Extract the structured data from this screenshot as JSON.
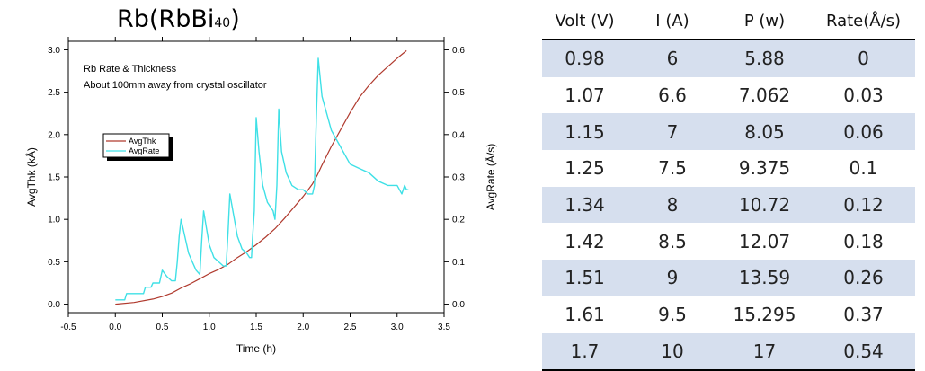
{
  "chart": {
    "title_main": "Rb(RbBi",
    "title_sub": "40",
    "title_close": ")"
  },
  "chart_data": {
    "type": "line",
    "annotation_lines": [
      "Rb Rate & Thickness",
      "About 100mm away from crystal oscillator"
    ],
    "xlabel": "Time (h)",
    "ylabel_left": "AvgThk (kÅ)",
    "ylabel_right": "AvgRate (Å/s)",
    "xlim": [
      -0.5,
      3.5
    ],
    "ylim_left": [
      -0.1,
      3.1
    ],
    "ylim_right": [
      -0.02,
      0.62
    ],
    "x_ticks": [
      "-0.5",
      "0.0",
      "0.5",
      "1.0",
      "1.5",
      "2.0",
      "2.5",
      "3.0",
      "3.5"
    ],
    "y_left_ticks": [
      "0.0",
      "0.5",
      "1.0",
      "1.5",
      "2.0",
      "2.5",
      "3.0"
    ],
    "y_right_ticks": [
      "0.0",
      "0.1",
      "0.2",
      "0.3",
      "0.4",
      "0.5",
      "0.6"
    ],
    "legend": {
      "placement": "center-left"
    },
    "colors": {
      "thk": "#b03a2e",
      "rate": "#3fe0e6"
    },
    "series": [
      {
        "name": "AvgThk",
        "axis": "left",
        "x": [
          0.0,
          0.2,
          0.4,
          0.5,
          0.6,
          0.7,
          0.8,
          0.9,
          1.0,
          1.1,
          1.2,
          1.3,
          1.4,
          1.5,
          1.6,
          1.7,
          1.8,
          1.9,
          2.0,
          2.1,
          2.15,
          2.2,
          2.3,
          2.4,
          2.5,
          2.6,
          2.7,
          2.8,
          2.9,
          3.0,
          3.1
        ],
        "y": [
          0.0,
          0.02,
          0.06,
          0.09,
          0.13,
          0.19,
          0.24,
          0.3,
          0.36,
          0.41,
          0.47,
          0.55,
          0.62,
          0.7,
          0.79,
          0.89,
          1.01,
          1.14,
          1.27,
          1.42,
          1.52,
          1.64,
          1.86,
          2.06,
          2.26,
          2.44,
          2.58,
          2.7,
          2.8,
          2.9,
          2.99
        ]
      },
      {
        "name": "AvgRate",
        "axis": "right",
        "x": [
          0.0,
          0.1,
          0.12,
          0.3,
          0.32,
          0.38,
          0.4,
          0.47,
          0.5,
          0.55,
          0.6,
          0.64,
          0.66,
          0.68,
          0.7,
          0.74,
          0.78,
          0.82,
          0.86,
          0.9,
          0.92,
          0.94,
          0.97,
          1.0,
          1.05,
          1.1,
          1.15,
          1.18,
          1.2,
          1.22,
          1.26,
          1.3,
          1.35,
          1.4,
          1.43,
          1.45,
          1.46,
          1.48,
          1.5,
          1.53,
          1.57,
          1.62,
          1.68,
          1.7,
          1.72,
          1.74,
          1.77,
          1.82,
          1.88,
          1.95,
          2.0,
          2.05,
          2.1,
          2.12,
          2.14,
          2.16,
          2.2,
          2.25,
          2.3,
          2.4,
          2.5,
          2.6,
          2.7,
          2.8,
          2.9,
          3.0,
          3.05,
          3.08,
          3.1,
          3.12
        ],
        "y": [
          0.01,
          0.01,
          0.025,
          0.025,
          0.04,
          0.04,
          0.05,
          0.05,
          0.08,
          0.065,
          0.055,
          0.055,
          0.1,
          0.16,
          0.2,
          0.16,
          0.12,
          0.1,
          0.08,
          0.07,
          0.15,
          0.22,
          0.18,
          0.14,
          0.11,
          0.1,
          0.09,
          0.09,
          0.17,
          0.26,
          0.21,
          0.16,
          0.13,
          0.12,
          0.11,
          0.11,
          0.15,
          0.22,
          0.44,
          0.36,
          0.28,
          0.24,
          0.22,
          0.2,
          0.28,
          0.46,
          0.36,
          0.31,
          0.28,
          0.27,
          0.27,
          0.26,
          0.26,
          0.28,
          0.44,
          0.58,
          0.49,
          0.45,
          0.41,
          0.37,
          0.33,
          0.32,
          0.31,
          0.29,
          0.28,
          0.28,
          0.26,
          0.28,
          0.27,
          0.27
        ]
      }
    ]
  },
  "table": {
    "headers": [
      "Volt (V)",
      "I (A)",
      "P (w)",
      "Rate(Å/s)"
    ],
    "rows": [
      [
        "0.98",
        "6",
        "5.88",
        "0"
      ],
      [
        "1.07",
        "6.6",
        "7.062",
        "0.03"
      ],
      [
        "1.15",
        "7",
        "8.05",
        "0.06"
      ],
      [
        "1.25",
        "7.5",
        "9.375",
        "0.1"
      ],
      [
        "1.34",
        "8",
        "10.72",
        "0.12"
      ],
      [
        "1.42",
        "8.5",
        "12.07",
        "0.18"
      ],
      [
        "1.51",
        "9",
        "13.59",
        "0.26"
      ],
      [
        "1.61",
        "9.5",
        "15.295",
        "0.37"
      ],
      [
        "1.7",
        "10",
        "17",
        "0.54"
      ]
    ]
  }
}
